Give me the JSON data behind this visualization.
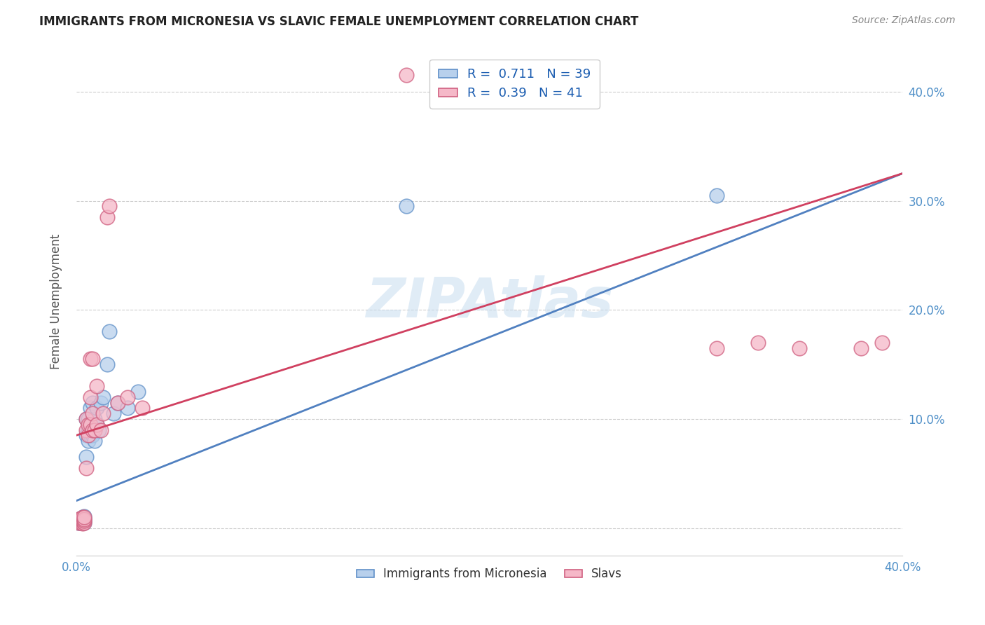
{
  "title": "IMMIGRANTS FROM MICRONESIA VS SLAVIC FEMALE UNEMPLOYMENT CORRELATION CHART",
  "source": "Source: ZipAtlas.com",
  "ylabel": "Female Unemployment",
  "xlim": [
    0.0,
    0.4
  ],
  "ylim": [
    -0.025,
    0.44
  ],
  "x_ticks": [
    0.0,
    0.1,
    0.2,
    0.3,
    0.4
  ],
  "x_tick_labels": [
    "0.0%",
    "",
    "",
    "",
    "40.0%"
  ],
  "y_ticks": [
    0.0,
    0.1,
    0.2,
    0.3,
    0.4
  ],
  "y_tick_labels_right": [
    "",
    "10.0%",
    "20.0%",
    "30.0%",
    "40.0%"
  ],
  "R_blue": 0.711,
  "N_blue": 39,
  "R_pink": 0.39,
  "N_pink": 41,
  "blue_fill": "#b8d0ec",
  "pink_fill": "#f5b8c8",
  "blue_edge": "#6090c8",
  "pink_edge": "#d06080",
  "blue_line": "#5080c0",
  "pink_line": "#d04060",
  "tick_color": "#5090c8",
  "watermark": "ZIPAtlas",
  "blue_x": [
    0.001,
    0.001,
    0.002,
    0.002,
    0.002,
    0.003,
    0.003,
    0.003,
    0.003,
    0.004,
    0.004,
    0.004,
    0.004,
    0.005,
    0.005,
    0.005,
    0.006,
    0.006,
    0.006,
    0.007,
    0.007,
    0.008,
    0.008,
    0.008,
    0.009,
    0.009,
    0.01,
    0.01,
    0.011,
    0.012,
    0.013,
    0.015,
    0.016,
    0.018,
    0.02,
    0.025,
    0.03,
    0.16,
    0.31
  ],
  "blue_y": [
    0.005,
    0.007,
    0.005,
    0.007,
    0.009,
    0.005,
    0.006,
    0.008,
    0.01,
    0.005,
    0.007,
    0.009,
    0.011,
    0.065,
    0.085,
    0.1,
    0.08,
    0.09,
    0.1,
    0.085,
    0.11,
    0.085,
    0.095,
    0.115,
    0.08,
    0.1,
    0.095,
    0.11,
    0.09,
    0.115,
    0.12,
    0.15,
    0.18,
    0.105,
    0.115,
    0.11,
    0.125,
    0.295,
    0.305
  ],
  "pink_x": [
    0.001,
    0.001,
    0.001,
    0.002,
    0.002,
    0.002,
    0.003,
    0.003,
    0.003,
    0.003,
    0.004,
    0.004,
    0.004,
    0.004,
    0.005,
    0.005,
    0.005,
    0.006,
    0.006,
    0.007,
    0.007,
    0.007,
    0.008,
    0.008,
    0.008,
    0.009,
    0.01,
    0.01,
    0.012,
    0.013,
    0.015,
    0.016,
    0.02,
    0.025,
    0.032,
    0.16,
    0.31,
    0.33,
    0.35,
    0.38,
    0.39
  ],
  "pink_y": [
    0.005,
    0.006,
    0.008,
    0.005,
    0.007,
    0.009,
    0.004,
    0.006,
    0.007,
    0.01,
    0.005,
    0.007,
    0.008,
    0.01,
    0.055,
    0.09,
    0.1,
    0.085,
    0.095,
    0.095,
    0.12,
    0.155,
    0.09,
    0.105,
    0.155,
    0.09,
    0.095,
    0.13,
    0.09,
    0.105,
    0.285,
    0.295,
    0.115,
    0.12,
    0.11,
    0.415,
    0.165,
    0.17,
    0.165,
    0.165,
    0.17
  ],
  "blue_line_x0": 0.0,
  "blue_line_y0": 0.025,
  "blue_line_x1": 0.4,
  "blue_line_y1": 0.325,
  "pink_line_x0": 0.0,
  "pink_line_y0": 0.085,
  "pink_line_x1": 0.4,
  "pink_line_y1": 0.325
}
